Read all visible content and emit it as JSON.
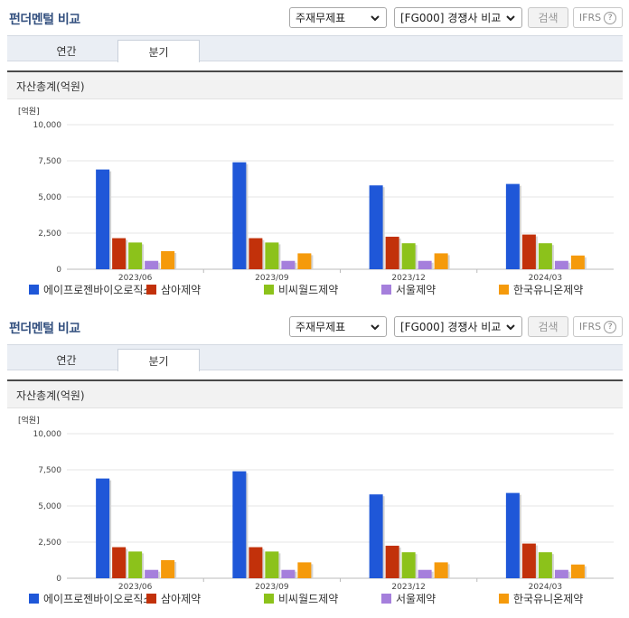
{
  "header": {
    "title": "펀더멘털 비교",
    "select1": "주재무제표",
    "select2": "[FG000] 경쟁사 비교",
    "search_label": "검색",
    "ifrs_label": "IFRS",
    "help_label": "?"
  },
  "tabs": [
    {
      "label": "연간",
      "active": false
    },
    {
      "label": "분기",
      "active": true
    }
  ],
  "panel": {
    "heading": "자산총계(억원)",
    "unit_label": "[억원]"
  },
  "colors": {
    "title": "#33507f",
    "accent": "#1f57d8"
  },
  "chart_data": {
    "type": "bar",
    "title": "자산총계(억원)",
    "ylabel": "[억원]",
    "ylim": [
      0,
      10000
    ],
    "yticks": [
      "0",
      "2,500",
      "5,000",
      "7,500",
      "10,000"
    ],
    "categories": [
      "2023/06",
      "2023/09",
      "2023/12",
      "2024/03"
    ],
    "series": [
      {
        "name": "에이프로젠바이오로직스",
        "color": "#1f57d8",
        "values": [
          6900,
          7400,
          5800,
          5900
        ]
      },
      {
        "name": "삼아제약",
        "color": "#c2310a",
        "values": [
          2150,
          2150,
          2250,
          2400
        ]
      },
      {
        "name": "비씨월드제약",
        "color": "#8cc21b",
        "values": [
          1850,
          1850,
          1800,
          1800
        ]
      },
      {
        "name": "서울제약",
        "color": "#a57fdc",
        "values": [
          580,
          580,
          580,
          580
        ]
      },
      {
        "name": "한국유니온제약",
        "color": "#f59a0b",
        "values": [
          1250,
          1100,
          1100,
          950
        ]
      }
    ],
    "legend": "bottom",
    "grid": true
  }
}
